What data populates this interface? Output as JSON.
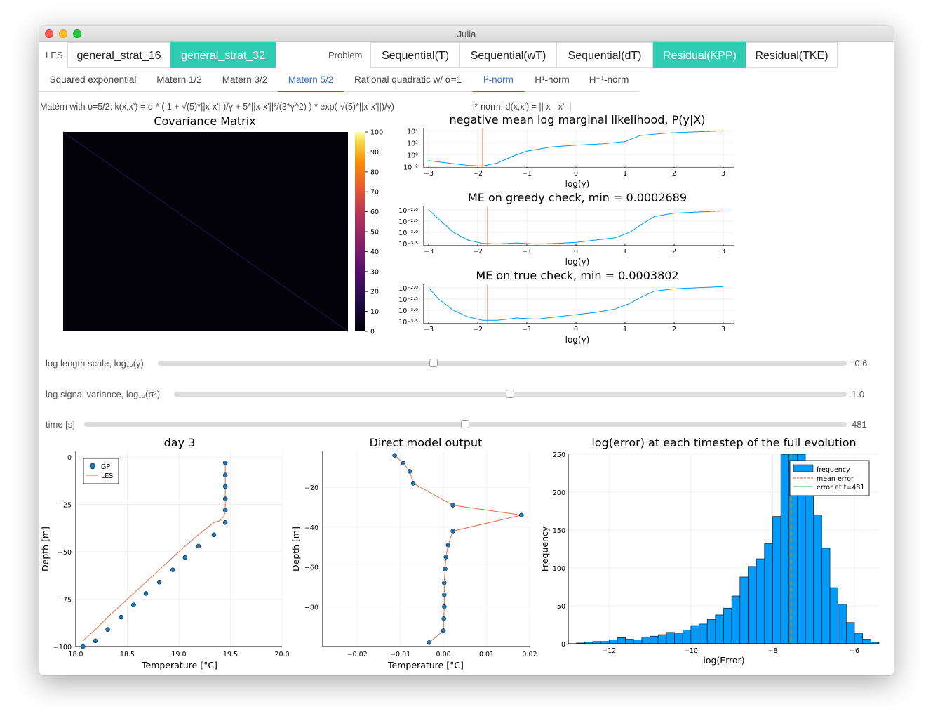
{
  "window": {
    "title": "Julia"
  },
  "les": {
    "label": "LES",
    "tabs": [
      {
        "label": "general_strat_16",
        "active": false
      },
      {
        "label": "general_strat_32",
        "active": true
      }
    ]
  },
  "problem": {
    "label": "Problem",
    "tabs": [
      {
        "label": "Sequential(T)",
        "active": false
      },
      {
        "label": "Sequential(wT)",
        "active": false
      },
      {
        "label": "Sequential(dT)",
        "active": false
      },
      {
        "label": "Residual(KPP)",
        "active": true
      },
      {
        "label": "Residual(TKE)",
        "active": false
      }
    ]
  },
  "kernels": {
    "tabs": [
      {
        "label": "Squared exponential",
        "active": false
      },
      {
        "label": "Matern 1/2",
        "active": false
      },
      {
        "label": "Matern 3/2",
        "active": false
      },
      {
        "label": "Matern 5/2",
        "active": true
      },
      {
        "label": "Rational quadratic w/ α=1",
        "active": false
      }
    ]
  },
  "norms": {
    "tabs": [
      {
        "label": "l²-norm",
        "active": true
      },
      {
        "label": "H¹-norm",
        "active": false
      },
      {
        "label": "H⁻¹-norm",
        "active": false
      }
    ]
  },
  "formula": {
    "kernel": "Matérn with υ=5/2: k(x,x') = σ * ( 1 + √(5)*||x-x'||)/γ + 5*||x-x'||²/(3*γ^2) ) * exp(-√(5)*||x-x'||)/γ)",
    "norm": "l²-norm: d(x,x') = || x - x' ||"
  },
  "sliders": [
    {
      "label": "log length scale, log₁₀(γ)",
      "value": "-0.6",
      "fraction": 0.41
    },
    {
      "label": "log signal variance, log₁₀(σ²)",
      "value": "1.0",
      "fraction": 0.5
    },
    {
      "label": "time [s]",
      "value": "481",
      "fraction": 0.5
    }
  ],
  "colors": {
    "accent": "#2ecdb3",
    "link": "#3a6fd0",
    "series_blue": "#009af9",
    "series_red": "#e26f46"
  },
  "chart_data": [
    {
      "type": "heatmap",
      "title": "Covariance Matrix",
      "colorbar_ticks": [
        "0",
        "10",
        "20",
        "30",
        "40",
        "50",
        "60",
        "70",
        "80",
        "90",
        "100"
      ],
      "zlim": [
        0,
        100
      ],
      "description": "near-zero everywhere with faint diagonal"
    },
    {
      "type": "line",
      "title": "negative mean log marginal likelihood, P(y|X)",
      "xlabel": "log(γ)",
      "x_ticks": [
        "−3",
        "−2",
        "−1",
        "0",
        "1",
        "2",
        "3"
      ],
      "y_ticks": [
        "10⁴",
        "10²",
        "10⁰",
        "10⁻²"
      ],
      "log_y": true,
      "x": [
        -3.0,
        -2.5,
        -2.2,
        -1.9,
        -1.6,
        -1.3,
        -1.0,
        -0.5,
        0.0,
        0.5,
        1.0,
        1.3,
        1.8,
        2.3,
        3.0
      ],
      "y_log10": [
        -1.0,
        -1.5,
        -1.8,
        -1.9,
        -1.4,
        -0.3,
        0.6,
        1.3,
        1.6,
        1.8,
        2.2,
        3.2,
        3.6,
        3.8,
        4.0
      ],
      "vline_x": -1.9
    },
    {
      "type": "line",
      "title": "ME on greedy check, min = 0.0002689",
      "xlabel": "log(γ)",
      "x_ticks": [
        "−3",
        "−2",
        "−1",
        "0",
        "1",
        "2",
        "3"
      ],
      "y_ticks": [
        "10⁻²·⁰",
        "10⁻²·⁵",
        "10⁻³·⁰",
        "10⁻³·⁵"
      ],
      "log_y": true,
      "x": [
        -3.0,
        -2.8,
        -2.5,
        -2.2,
        -1.9,
        -1.6,
        -1.2,
        -0.8,
        -0.4,
        0.0,
        0.4,
        0.8,
        1.1,
        1.3,
        1.6,
        2.0,
        2.5,
        3.0
      ],
      "y_log10": [
        -2.0,
        -2.4,
        -3.0,
        -3.35,
        -3.5,
        -3.52,
        -3.48,
        -3.53,
        -3.5,
        -3.45,
        -3.35,
        -3.25,
        -3.0,
        -2.7,
        -2.3,
        -2.15,
        -2.1,
        -2.05
      ],
      "vline_x": -1.8
    },
    {
      "type": "line",
      "title": "ME on true check, min = 0.0003802",
      "xlabel": "log(γ)",
      "x_ticks": [
        "−3",
        "−2",
        "−1",
        "0",
        "1",
        "2",
        "3"
      ],
      "y_ticks": [
        "10⁻²·⁰",
        "10⁻²·⁵",
        "10⁻³·⁰",
        "10⁻³·⁵"
      ],
      "log_y": true,
      "x": [
        -3.0,
        -2.8,
        -2.5,
        -2.2,
        -1.9,
        -1.6,
        -1.2,
        -0.8,
        -0.4,
        0.0,
        0.4,
        0.8,
        1.1,
        1.3,
        1.6,
        2.0,
        2.5,
        3.0
      ],
      "y_log10": [
        -2.0,
        -2.5,
        -3.0,
        -3.3,
        -3.45,
        -3.45,
        -3.35,
        -3.4,
        -3.3,
        -3.2,
        -3.1,
        -2.95,
        -2.7,
        -2.45,
        -2.15,
        -2.05,
        -2.0,
        -1.95
      ],
      "vline_x": -1.8
    },
    {
      "type": "line",
      "title": "day 3",
      "xlabel": "Temperature [°C]",
      "ylabel": "Depth [m]",
      "xlim": [
        18.0,
        20.0
      ],
      "ylim": [
        -100,
        3
      ],
      "x_ticks": [
        18.0,
        18.5,
        19.0,
        19.5,
        20.0
      ],
      "y_ticks": [
        0,
        -25,
        -50,
        -75,
        -100
      ],
      "legend": [
        "GP",
        "LES"
      ],
      "series": [
        {
          "name": "GP",
          "x": [
            19.45,
            19.45,
            19.45,
            19.45,
            19.45,
            19.45,
            19.34,
            19.19,
            19.06,
            18.94,
            18.81,
            18.68,
            18.56,
            18.44,
            18.31,
            18.19,
            18.07
          ],
          "y": [
            -3,
            -9.5,
            -15.5,
            -22,
            -28,
            -34.5,
            -41,
            -47,
            -53,
            -59.5,
            -66,
            -72,
            -78,
            -84.5,
            -91,
            -97,
            -100
          ]
        },
        {
          "name": "LES",
          "x": [
            19.45,
            19.45,
            19.45,
            19.44,
            19.4,
            19.34,
            19.19,
            19.06,
            18.94,
            18.81,
            18.68,
            18.56,
            18.44,
            18.31,
            18.19,
            18.07
          ],
          "y": [
            -3,
            -15.5,
            -28,
            -31,
            -33.5,
            -34.5,
            -41,
            -47,
            -53,
            -59.5,
            -66,
            -72,
            -78,
            -84.5,
            -91,
            -97
          ]
        }
      ]
    },
    {
      "type": "line",
      "title": "Direct model output",
      "xlabel": "Temperature [°C]",
      "ylabel": "Depth [m]",
      "xlim": [
        -0.028,
        0.02
      ],
      "ylim": [
        -100,
        -2
      ],
      "x_ticks": [
        -0.02,
        -0.01,
        0.0,
        0.01,
        0.02
      ],
      "y_ticks": [
        -20,
        -40,
        -60,
        -80
      ],
      "series": [
        {
          "name": "",
          "x": [
            -0.0113,
            -0.0093,
            -0.0078,
            -0.007,
            0.0022,
            0.0181,
            0.0022,
            0.0011,
            0.0006,
            0.0004,
            0.0002,
            0.0002,
            0.0002,
            0.0001,
            0.0,
            -0.0033
          ],
          "y": [
            -4,
            -8,
            -12,
            -18,
            -29,
            -34,
            -42,
            -49,
            -55,
            -61,
            -68,
            -74,
            -80,
            -86,
            -92,
            -98
          ]
        }
      ]
    },
    {
      "type": "bar",
      "title": "log(error) at each timestep of the full evolution",
      "xlabel": "log(Error)",
      "ylabel": "Frequency",
      "xlim": [
        -13.0,
        -5.4
      ],
      "ylim": [
        0,
        250
      ],
      "x_ticks": [
        -12,
        -10,
        -8,
        -6
      ],
      "y_ticks": [
        0,
        50,
        100,
        150,
        200,
        250
      ],
      "legend": [
        "frequency",
        "mean error",
        "error at t=481"
      ],
      "bin_start": -12.8,
      "bin_width": 0.2,
      "values": [
        1,
        2,
        3,
        3,
        5,
        8,
        6,
        5,
        9,
        10,
        12,
        15,
        14,
        18,
        24,
        26,
        32,
        38,
        47,
        63,
        88,
        102,
        112,
        132,
        168,
        250,
        250,
        250,
        230,
        170,
        126,
        74,
        52,
        28,
        14,
        6,
        2
      ],
      "mean_error": -7.55,
      "error_at_t": -7.55
    }
  ]
}
